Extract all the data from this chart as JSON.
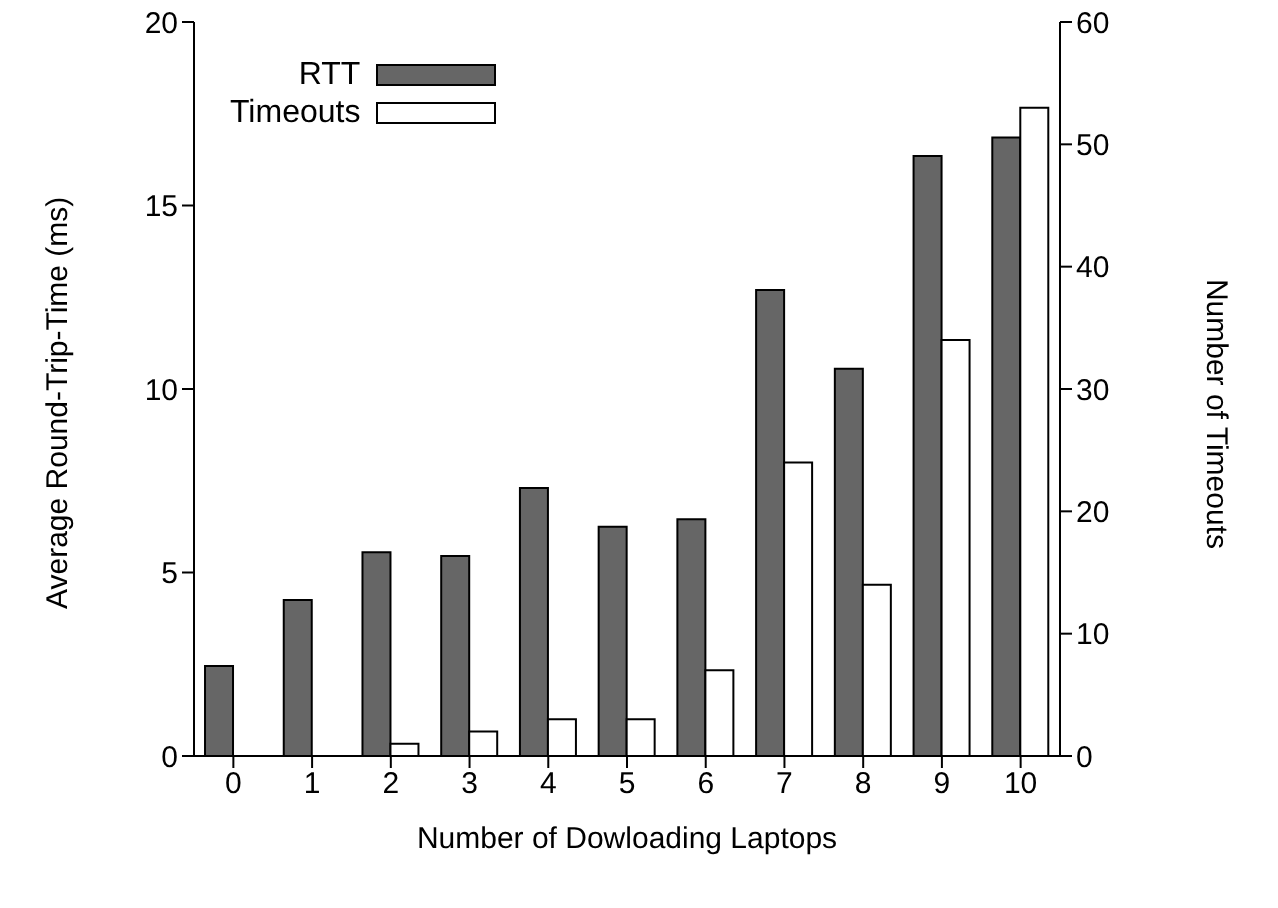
{
  "chart_data": {
    "type": "bar",
    "xlabel": "Number of Dowloading Laptops",
    "ylabel": "Average Round-Trip-Time (ms)",
    "y2label": "Number of Timeouts",
    "categories": [
      "0",
      "1",
      "2",
      "3",
      "4",
      "5",
      "6",
      "7",
      "8",
      "9",
      "10"
    ],
    "series": [
      {
        "name": "RTT",
        "color": "#666666",
        "values": [
          2.45,
          4.25,
          5.55,
          5.45,
          7.3,
          6.25,
          6.45,
          12.7,
          10.55,
          16.35,
          16.85
        ]
      },
      {
        "name": "Timeouts",
        "color": "#ffffff",
        "axis": "y2",
        "values": [
          0,
          0,
          1,
          2,
          3,
          3,
          7,
          24,
          14,
          34,
          53
        ]
      }
    ],
    "ylim": [
      0,
      20
    ],
    "yticks": [
      0,
      5,
      10,
      15,
      20
    ],
    "y2lim": [
      0,
      60
    ],
    "y2ticks": [
      0,
      10,
      20,
      30,
      40,
      50,
      60
    ],
    "grid": false,
    "legend": "top left"
  }
}
